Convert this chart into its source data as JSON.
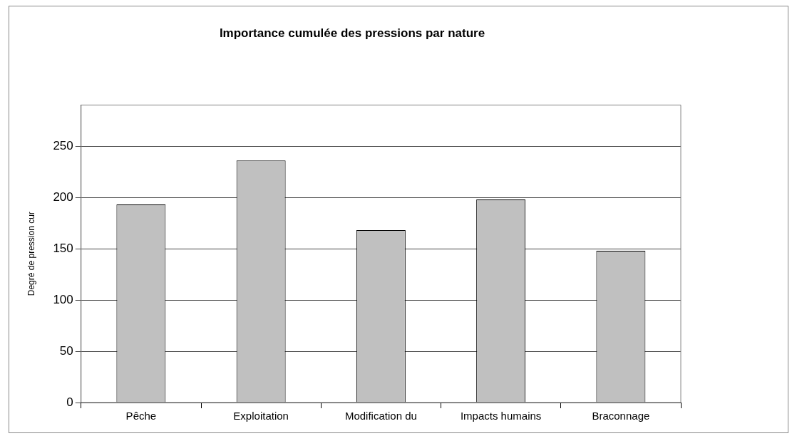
{
  "chart_data": {
    "type": "bar",
    "title": "Importance cumulée des pressions par nature",
    "ylabel": "Degré de pression cur",
    "categories": [
      "Pêche",
      "Exploitation",
      "Modification du",
      "Impacts humains",
      "Braconnage"
    ],
    "values": [
      193,
      236,
      168,
      198,
      148
    ],
    "color": "#c0c0c0",
    "ylim": [
      0,
      290
    ],
    "yticks": [
      0,
      50,
      100,
      150,
      200,
      250
    ],
    "grid": "y",
    "legend": false
  }
}
